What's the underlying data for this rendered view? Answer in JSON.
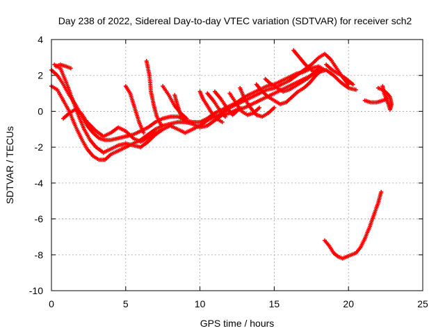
{
  "chart_data": {
    "type": "scatter",
    "title": "Day 238 of 2022, Sidereal Day-to-day VTEC variation (SDTVAR) for receiver sch2",
    "xlabel": "GPS time / hours",
    "ylabel": "SDTVAR / TECUs",
    "xlim": [
      0,
      25
    ],
    "ylim": [
      -10,
      4
    ],
    "xticks": [
      0,
      5,
      10,
      15,
      20,
      25
    ],
    "xtick_labels": [
      "0",
      "5",
      "10",
      "15",
      "20",
      "25"
    ],
    "yticks": [
      -10,
      -8,
      -6,
      -4,
      -2,
      0,
      2,
      4
    ],
    "ytick_labels": [
      "-10",
      "-8",
      "-6",
      "-4",
      "-2",
      "0",
      "2",
      "4"
    ],
    "grid": true,
    "marker": "+",
    "color": "#ff0000",
    "series": [
      {
        "name": "track-1",
        "points": [
          [
            0.0,
            2.3
          ],
          [
            0.4,
            2.0
          ],
          [
            0.8,
            1.5
          ],
          [
            1.2,
            0.9
          ],
          [
            1.6,
            0.4
          ],
          [
            2.0,
            -0.2
          ],
          [
            2.4,
            -0.8
          ],
          [
            2.8,
            -1.2
          ],
          [
            3.2,
            -1.5
          ],
          [
            3.6,
            -1.6
          ],
          [
            4.0,
            -1.6
          ],
          [
            4.5,
            -1.5
          ],
          [
            5.0,
            -1.4
          ],
          [
            5.5,
            -1.3
          ],
          [
            6.0,
            -1.1
          ],
          [
            6.5,
            -0.9
          ],
          [
            7.0,
            -0.6
          ],
          [
            7.5,
            -0.4
          ],
          [
            8.0,
            -0.3
          ],
          [
            8.5,
            -0.3
          ],
          [
            9.0,
            -0.5
          ],
          [
            9.5,
            -0.6
          ],
          [
            10.0,
            -0.6
          ],
          [
            10.5,
            -0.4
          ],
          [
            11.0,
            -0.1
          ],
          [
            11.5,
            0.1
          ],
          [
            12.0,
            0.3
          ],
          [
            12.5,
            0.5
          ],
          [
            13.0,
            0.8
          ],
          [
            13.5,
            1.0
          ],
          [
            14.0,
            1.2
          ],
          [
            14.5,
            1.4
          ],
          [
            15.0,
            1.5
          ],
          [
            15.5,
            1.7
          ],
          [
            16.0,
            1.9
          ],
          [
            16.5,
            2.1
          ],
          [
            17.0,
            2.2
          ],
          [
            17.5,
            2.4
          ],
          [
            18.0,
            2.5
          ],
          [
            18.4,
            2.3
          ]
        ]
      },
      {
        "name": "track-2",
        "points": [
          [
            0.0,
            1.4
          ],
          [
            0.4,
            1.2
          ],
          [
            0.8,
            0.6
          ],
          [
            1.2,
            0.0
          ],
          [
            1.6,
            -0.8
          ],
          [
            2.0,
            -1.5
          ],
          [
            2.4,
            -2.1
          ],
          [
            2.8,
            -2.5
          ],
          [
            3.2,
            -2.7
          ],
          [
            3.6,
            -2.7
          ],
          [
            4.0,
            -2.4
          ],
          [
            4.5,
            -2.2
          ],
          [
            5.0,
            -2.0
          ],
          [
            5.5,
            -1.8
          ],
          [
            6.0,
            -1.6
          ],
          [
            6.5,
            -1.3
          ],
          [
            7.0,
            -1.0
          ],
          [
            7.5,
            -0.8
          ],
          [
            8.0,
            -0.7
          ],
          [
            8.5,
            -0.6
          ],
          [
            9.0,
            -0.6
          ],
          [
            9.5,
            -0.7
          ],
          [
            10.0,
            -0.9
          ],
          [
            10.5,
            -0.8
          ],
          [
            11.0,
            -0.5
          ],
          [
            11.5,
            -0.2
          ],
          [
            12.0,
            -0.1
          ],
          [
            12.5,
            0.1
          ],
          [
            13.0,
            0.2
          ],
          [
            13.5,
            0.4
          ],
          [
            14.0,
            0.6
          ],
          [
            14.5,
            0.8
          ],
          [
            15.0,
            1.0
          ],
          [
            15.5,
            1.2
          ],
          [
            16.0,
            1.4
          ],
          [
            16.5,
            1.6
          ],
          [
            17.0,
            1.8
          ],
          [
            17.5,
            2.0
          ],
          [
            18.0,
            2.2
          ],
          [
            18.5,
            2.3
          ],
          [
            19.0,
            2.0
          ],
          [
            19.5,
            1.6
          ],
          [
            20.0,
            1.3
          ],
          [
            20.5,
            1.2
          ]
        ]
      },
      {
        "name": "track-3",
        "points": [
          [
            0.2,
            2.6
          ],
          [
            0.6,
            2.4
          ],
          [
            1.0,
            1.6
          ],
          [
            1.4,
            0.7
          ],
          [
            1.8,
            -0.2
          ],
          [
            2.2,
            -1.0
          ],
          [
            2.6,
            -1.6
          ],
          [
            3.0,
            -2.0
          ],
          [
            3.5,
            -2.3
          ],
          [
            4.0,
            -2.1
          ],
          [
            4.5,
            -1.9
          ],
          [
            5.0,
            -1.8
          ],
          [
            5.5,
            -1.9
          ],
          [
            6.0,
            -2.0
          ],
          [
            6.5,
            -1.7
          ],
          [
            7.0,
            -1.3
          ],
          [
            7.5,
            -1.0
          ],
          [
            8.0,
            -0.8
          ],
          [
            8.5,
            -1.0
          ],
          [
            9.0,
            -1.2
          ],
          [
            9.5,
            -1.0
          ],
          [
            10.0,
            -0.8
          ],
          [
            10.5,
            -0.5
          ],
          [
            11.0,
            -0.3
          ],
          [
            11.5,
            -0.1
          ],
          [
            12.0,
            0.2
          ],
          [
            12.5,
            0.4
          ],
          [
            13.0,
            0.6
          ],
          [
            13.5,
            0.8
          ],
          [
            14.0,
            1.0
          ],
          [
            14.5,
            1.2
          ],
          [
            15.0,
            1.3
          ],
          [
            15.5,
            1.5
          ],
          [
            16.0,
            1.7
          ],
          [
            16.5,
            2.0
          ],
          [
            17.0,
            2.3
          ],
          [
            17.5,
            2.6
          ],
          [
            18.0,
            3.0
          ],
          [
            18.4,
            3.2
          ],
          [
            18.8,
            2.9
          ],
          [
            19.2,
            2.4
          ],
          [
            19.6,
            1.9
          ],
          [
            20.0,
            1.5
          ]
        ]
      },
      {
        "name": "track-4",
        "points": [
          [
            0.3,
            2.5
          ],
          [
            0.6,
            2.6
          ],
          [
            1.0,
            2.5
          ],
          [
            1.3,
            2.4
          ]
        ]
      },
      {
        "name": "track-5",
        "points": [
          [
            0.8,
            -0.4
          ],
          [
            1.2,
            -0.1
          ],
          [
            1.6,
            0.1
          ],
          [
            2.0,
            -0.1
          ],
          [
            2.4,
            -0.6
          ],
          [
            3.0,
            -1.1
          ],
          [
            3.5,
            -1.4
          ],
          [
            4.0,
            -1.2
          ],
          [
            4.5,
            -0.9
          ],
          [
            5.0,
            -1.1
          ],
          [
            5.5,
            -1.5
          ],
          [
            6.0,
            -1.7
          ],
          [
            6.5,
            -1.5
          ],
          [
            7.0,
            -1.2
          ],
          [
            7.5,
            -1.0
          ]
        ]
      },
      {
        "name": "track-6",
        "points": [
          [
            5.0,
            1.4
          ],
          [
            5.3,
            1.0
          ],
          [
            5.6,
            0.2
          ],
          [
            5.9,
            -0.6
          ],
          [
            6.2,
            -1.2
          ]
        ]
      },
      {
        "name": "track-7",
        "points": [
          [
            6.4,
            2.8
          ],
          [
            6.6,
            2.0
          ],
          [
            6.7,
            1.1
          ],
          [
            6.9,
            0.3
          ],
          [
            7.1,
            -0.3
          ],
          [
            7.4,
            -0.8
          ]
        ]
      },
      {
        "name": "track-8",
        "points": [
          [
            7.5,
            1.4
          ],
          [
            7.9,
            0.9
          ],
          [
            8.3,
            0.3
          ],
          [
            8.7,
            -0.1
          ],
          [
            9.1,
            -0.4
          ]
        ]
      },
      {
        "name": "track-9",
        "points": [
          [
            8.3,
            0.9
          ],
          [
            8.5,
            0.3
          ],
          [
            8.7,
            -0.2
          ],
          [
            9.0,
            -0.6
          ]
        ]
      },
      {
        "name": "track-10",
        "points": [
          [
            10.0,
            1.1
          ],
          [
            10.2,
            0.7
          ],
          [
            10.5,
            0.3
          ],
          [
            10.8,
            -0.1
          ],
          [
            11.1,
            -0.4
          ],
          [
            11.5,
            -0.6
          ]
        ]
      },
      {
        "name": "track-11",
        "points": [
          [
            10.5,
            1.0
          ],
          [
            10.9,
            0.6
          ],
          [
            11.3,
            0.1
          ],
          [
            11.7,
            -0.3
          ]
        ]
      },
      {
        "name": "track-12",
        "points": [
          [
            11.0,
            1.1
          ],
          [
            11.4,
            0.7
          ],
          [
            11.8,
            0.2
          ],
          [
            12.2,
            -0.2
          ],
          [
            12.6,
            0.1
          ]
        ]
      },
      {
        "name": "track-13",
        "points": [
          [
            12.0,
            1.0
          ],
          [
            12.4,
            0.5
          ],
          [
            12.8,
            0.0
          ],
          [
            13.2,
            -0.2
          ],
          [
            13.6,
            -0.1
          ],
          [
            14.0,
            0.2
          ]
        ]
      },
      {
        "name": "track-14",
        "points": [
          [
            12.7,
            1.3
          ],
          [
            13.0,
            0.7
          ],
          [
            13.4,
            0.2
          ],
          [
            13.8,
            -0.2
          ],
          [
            14.2,
            -0.3
          ],
          [
            14.6,
            -0.1
          ],
          [
            15.0,
            0.2
          ]
        ]
      },
      {
        "name": "track-15",
        "points": [
          [
            13.8,
            1.5
          ],
          [
            14.2,
            1.1
          ],
          [
            14.6,
            0.8
          ],
          [
            15.0,
            0.6
          ],
          [
            15.4,
            0.4
          ],
          [
            15.8,
            0.5
          ],
          [
            16.2,
            0.8
          ],
          [
            16.6,
            1.1
          ],
          [
            17.0,
            1.3
          ],
          [
            17.4,
            1.6
          ],
          [
            17.8,
            2.0
          ],
          [
            18.2,
            2.3
          ]
        ]
      },
      {
        "name": "track-16",
        "points": [
          [
            14.4,
            1.8
          ],
          [
            14.8,
            1.5
          ],
          [
            15.2,
            1.3
          ],
          [
            15.6,
            1.1
          ],
          [
            16.0,
            1.2
          ],
          [
            16.4,
            1.4
          ],
          [
            16.8,
            1.6
          ],
          [
            17.2,
            1.8
          ],
          [
            17.6,
            2.1
          ],
          [
            18.0,
            2.4
          ]
        ]
      },
      {
        "name": "track-17",
        "points": [
          [
            16.3,
            3.4
          ],
          [
            16.7,
            3.0
          ],
          [
            17.1,
            2.6
          ],
          [
            17.5,
            2.3
          ],
          [
            17.9,
            2.1
          ]
        ]
      },
      {
        "name": "track-18",
        "points": [
          [
            18.5,
            2.6
          ],
          [
            18.9,
            2.3
          ],
          [
            19.3,
            2.1
          ],
          [
            19.7,
            1.9
          ],
          [
            20.0,
            1.7
          ],
          [
            20.3,
            1.5
          ]
        ]
      },
      {
        "name": "track-19",
        "points": [
          [
            21.1,
            0.6
          ],
          [
            21.5,
            0.5
          ],
          [
            21.9,
            0.5
          ],
          [
            22.3,
            0.6
          ],
          [
            22.6,
            0.7
          ]
        ]
      },
      {
        "name": "track-20",
        "points": [
          [
            22.0,
            1.3
          ],
          [
            22.3,
            1.2
          ],
          [
            22.6,
            1.0
          ],
          [
            22.8,
            0.8
          ],
          [
            22.9,
            0.4
          ],
          [
            22.8,
            0.1
          ],
          [
            22.6,
            0.6
          ],
          [
            22.4,
            1.0
          ],
          [
            22.3,
            1.4
          ]
        ]
      },
      {
        "name": "track-21",
        "points": [
          [
            18.4,
            -7.2
          ],
          [
            18.7,
            -7.5
          ],
          [
            19.0,
            -7.9
          ],
          [
            19.3,
            -8.1
          ],
          [
            19.6,
            -8.2
          ],
          [
            19.9,
            -8.1
          ],
          [
            20.2,
            -8.0
          ],
          [
            20.5,
            -7.9
          ],
          [
            20.8,
            -7.6
          ],
          [
            21.1,
            -7.1
          ],
          [
            21.4,
            -6.5
          ],
          [
            21.7,
            -5.8
          ],
          [
            22.0,
            -5.1
          ],
          [
            22.2,
            -4.5
          ]
        ]
      }
    ]
  }
}
